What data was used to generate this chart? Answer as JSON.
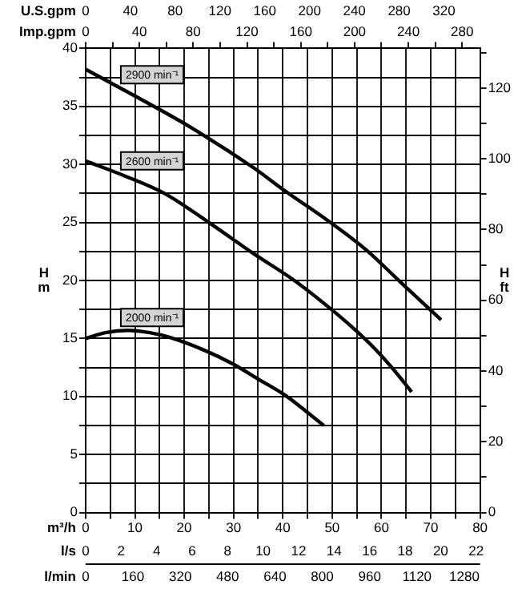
{
  "chart_data": {
    "type": "line",
    "xlabel": "m³/h",
    "x2label": "Imp.gpm",
    "ylabel": "H m",
    "y2label": "H ft",
    "xlim": [
      0,
      80
    ],
    "xticks": [
      0,
      {
        "value": 5,
        "label": null
      },
      10,
      {
        "value": 15,
        "label": null
      },
      20,
      {
        "value": 25,
        "label": null
      },
      30,
      {
        "value": 35,
        "label": null
      },
      40,
      {
        "value": 45,
        "label": null
      },
      50,
      {
        "value": 55,
        "label": null
      },
      60,
      {
        "value": 65,
        "label": null
      },
      70,
      {
        "value": 75,
        "label": null
      },
      80
    ],
    "x2lim": [
      0,
      293.3
    ],
    "x2ticks": [
      0,
      {
        "value": 20,
        "label": null
      },
      40,
      {
        "value": 60,
        "label": null
      },
      80,
      {
        "value": 100,
        "label": null
      },
      120,
      {
        "value": 140,
        "label": null
      },
      160,
      {
        "value": 180,
        "label": null
      },
      200,
      {
        "value": 220,
        "label": null
      },
      240,
      {
        "value": 260,
        "label": null
      },
      280
    ],
    "ylim": [
      0,
      40
    ],
    "yticks": [
      0,
      {
        "value": 2.5,
        "label": null
      },
      5,
      {
        "value": 7.5,
        "label": null
      },
      10,
      {
        "value": 12.5,
        "label": null
      },
      15,
      {
        "value": 17.5,
        "label": null
      },
      20,
      {
        "value": 22.5,
        "label": null
      },
      25,
      {
        "value": 27.5,
        "label": null
      },
      30,
      {
        "value": 32.5,
        "label": null
      },
      35,
      {
        "value": 37.5,
        "label": null
      },
      40
    ],
    "y2lim": [
      0,
      131.2
    ],
    "y2ticks": [
      0,
      {
        "value": 10,
        "label": null
      },
      20,
      {
        "value": 30,
        "label": null
      },
      40,
      {
        "value": 50,
        "label": null
      },
      60,
      {
        "value": 70,
        "label": null
      },
      80,
      {
        "value": 90,
        "label": null
      },
      100,
      {
        "value": 110,
        "label": null
      },
      120,
      {
        "value": 130,
        "label": null
      }
    ],
    "grid": true,
    "marker": "none",
    "line_style": "solid",
    "annotations": [
      "U.S.gpm",
      "0",
      "40",
      "80",
      "120",
      "160",
      "200",
      "240",
      "280",
      "320",
      "l/s",
      "0",
      "2",
      "4",
      "6",
      "8",
      "10",
      "12",
      "14",
      "16",
      "18",
      "20",
      "22",
      "l/min",
      "0",
      "160",
      "320",
      "480",
      "640",
      "800",
      "960",
      "1120",
      "1280"
    ],
    "series": [
      {
        "name": "2900 min⁻¹",
        "color": "#000000",
        "x": [
          0,
          10,
          21.3,
          34.1,
          40.5,
          49,
          57,
          64,
          72.1
        ],
        "values": [
          38.2,
          35.9,
          33.2,
          29.7,
          27.7,
          25.2,
          22.6,
          19.8,
          16.6
        ]
      },
      {
        "name": "2600 min⁻¹",
        "color": "#000000",
        "x": [
          0,
          8,
          16,
          25,
          34.1,
          42,
          49,
          54,
          58.7,
          62.5,
          66.1
        ],
        "values": [
          30.3,
          29,
          27.5,
          25,
          22.3,
          20.1,
          17.8,
          16,
          14.1,
          12.3,
          10.4
        ]
      },
      {
        "name": "2000 min⁻¹",
        "color": "#000000",
        "x": [
          0,
          4,
          8.5,
          13,
          17,
          24,
          29.9,
          35,
          40.5,
          44.5,
          48.3
        ],
        "values": [
          15,
          15.5,
          15.7,
          15.5,
          15.1,
          14,
          12.8,
          11.5,
          10.1,
          8.8,
          7.5
        ]
      }
    ]
  }
}
